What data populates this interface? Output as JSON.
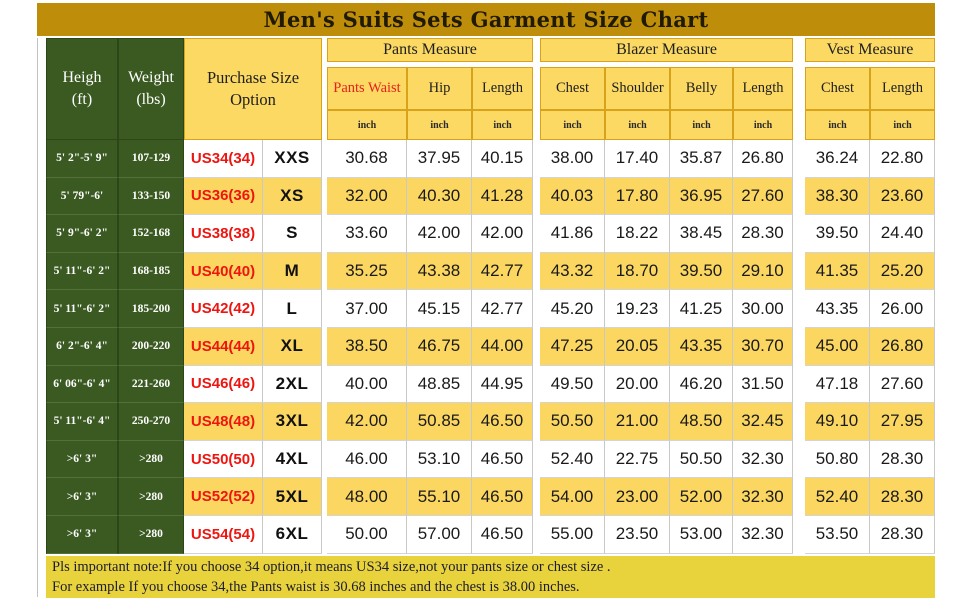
{
  "title": "Men's Suits Sets Garment Size Chart",
  "headers": {
    "height": "Heigh\n(ft)",
    "weight": "Weight\n(lbs)",
    "purchase": "Purchase Size\nOption",
    "unit": "inch",
    "groups": [
      {
        "label": "Pants Measure",
        "cols": [
          "Pants Waist",
          "Hip",
          "Length"
        ]
      },
      {
        "label": "Blazer Measure",
        "cols": [
          "Chest",
          "Shoulder",
          "Belly",
          "Length"
        ]
      },
      {
        "label": "Vest Measure",
        "cols": [
          "Chest",
          "Length"
        ]
      }
    ]
  },
  "chart_data": {
    "type": "table",
    "title": "Men's Suits Sets Garment Size Chart",
    "column_groups": [
      "Pants Measure",
      "Blazer Measure",
      "Vest Measure"
    ],
    "columns": [
      "Heigh (ft)",
      "Weight (lbs)",
      "Purchase Size Option",
      "Pants Waist inch",
      "Hip inch",
      "Length inch",
      "Chest inch",
      "Shoulder inch",
      "Belly inch",
      "Length inch",
      "Chest inch",
      "Length inch"
    ],
    "rows": [
      {
        "height": "5' 2\"-5' 9\"",
        "weight": "107-129",
        "us_size": "US34(34)",
        "size": "XXS",
        "values": [
          "30.68",
          "37.95",
          "40.15",
          "38.00",
          "17.40",
          "35.87",
          "26.80",
          "36.24",
          "22.80"
        ]
      },
      {
        "height": "5' 79\"-6'",
        "weight": "133-150",
        "us_size": "US36(36)",
        "size": "XS",
        "values": [
          "32.00",
          "40.30",
          "41.28",
          "40.03",
          "17.80",
          "36.95",
          "27.60",
          "38.30",
          "23.60"
        ]
      },
      {
        "height": "5' 9\"-6' 2\"",
        "weight": "152-168",
        "us_size": "US38(38)",
        "size": "S",
        "values": [
          "33.60",
          "42.00",
          "42.00",
          "41.86",
          "18.22",
          "38.45",
          "28.30",
          "39.50",
          "24.40"
        ]
      },
      {
        "height": "5' 11\"-6' 2\"",
        "weight": "168-185",
        "us_size": "US40(40)",
        "size": "M",
        "values": [
          "35.25",
          "43.38",
          "42.77",
          "43.32",
          "18.70",
          "39.50",
          "29.10",
          "41.35",
          "25.20"
        ]
      },
      {
        "height": "5' 11\"-6' 2\"",
        "weight": "185-200",
        "us_size": "US42(42)",
        "size": "L",
        "values": [
          "37.00",
          "45.15",
          "42.77",
          "45.20",
          "19.23",
          "41.25",
          "30.00",
          "43.35",
          "26.00"
        ]
      },
      {
        "height": "6' 2\"-6' 4\"",
        "weight": "200-220",
        "us_size": "US44(44)",
        "size": "XL",
        "values": [
          "38.50",
          "46.75",
          "44.00",
          "47.25",
          "20.05",
          "43.35",
          "30.70",
          "45.00",
          "26.80"
        ]
      },
      {
        "height": "6' 06\"-6' 4\"",
        "weight": "221-260",
        "us_size": "US46(46)",
        "size": "2XL",
        "values": [
          "40.00",
          "48.85",
          "44.95",
          "49.50",
          "20.00",
          "46.20",
          "31.50",
          "47.18",
          "27.60"
        ]
      },
      {
        "height": "5' 11\"-6' 4\"",
        "weight": "250-270",
        "us_size": "US48(48)",
        "size": "3XL",
        "values": [
          "42.00",
          "50.85",
          "46.50",
          "50.50",
          "21.00",
          "48.50",
          "32.45",
          "49.10",
          "27.95"
        ]
      },
      {
        "height": ">6' 3\"",
        "weight": ">280",
        "us_size": "US50(50)",
        "size": "4XL",
        "values": [
          "46.00",
          "53.10",
          "46.50",
          "52.40",
          "22.75",
          "50.50",
          "32.30",
          "50.80",
          "28.30"
        ]
      },
      {
        "height": ">6' 3\"",
        "weight": ">280",
        "us_size": "US52(52)",
        "size": "5XL",
        "values": [
          "48.00",
          "55.10",
          "46.50",
          "54.00",
          "23.00",
          "52.00",
          "32.30",
          "52.40",
          "28.30"
        ]
      },
      {
        "height": ">6' 3\"",
        "weight": ">280",
        "us_size": "US54(54)",
        "size": "6XL",
        "values": [
          "50.00",
          "57.00",
          "46.50",
          "55.00",
          "23.50",
          "53.00",
          "32.30",
          "53.50",
          "28.30"
        ]
      }
    ]
  },
  "notes": {
    "line1": "Pls important note:If you choose 34 option,it means US34 size,not your pants size or chest size .",
    "line2": "For example If you choose 34,the Pants waist is 30.68 inches and the chest is 38.00 inches."
  },
  "colors": {
    "title_bar": "#be8e0b",
    "header_yellow": "#fbd963",
    "green": "#3b5a22",
    "stripe_yellow": "#fbd761",
    "note_bg": "#e9d33c",
    "red_text": "#ee1510"
  }
}
